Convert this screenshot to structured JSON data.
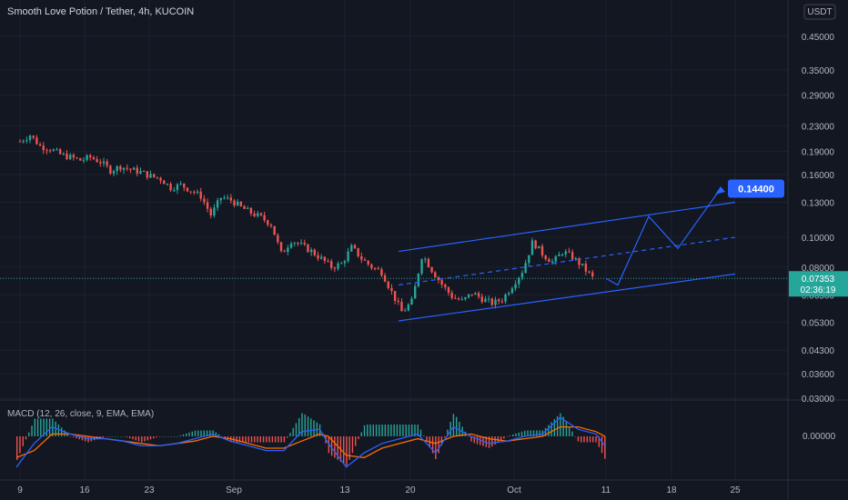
{
  "header": {
    "title": "Smooth Love Potion / Tether, 4h, KUCOIN",
    "currency_badge": "USDT"
  },
  "price_panel": {
    "last_price": "0.07353",
    "countdown": "02:36:19",
    "last_price_color": "#26a69a",
    "target_label": "0.14400",
    "target_color": "#2962ff",
    "channel_color": "#2962ff"
  },
  "macd_panel": {
    "label": "MACD (12, 26, close, 9, EMA, EMA)",
    "zero_tick": "0.00000",
    "macd_color": "#2962ff",
    "signal_color": "#ff6d00",
    "hist_up_color": "#26a69a",
    "hist_down_color": "#ef5350"
  },
  "chart_data": {
    "type": "candlestick",
    "symbol": "Smooth Love Potion / Tether",
    "interval": "4h",
    "exchange": "KUCOIN",
    "y_scale": "log",
    "y_ticks": [
      "0",
      "0.45000",
      "0.35000",
      "0.29000",
      "0.23000",
      "0.19000",
      "0.16000",
      "0.13000",
      "0.10000",
      "0.08000",
      "0.06500",
      "0.05300",
      "0.04300",
      "0.03600",
      "0.03000"
    ],
    "x_ticks": [
      "9",
      "16",
      "23",
      "Sep",
      "13",
      "20",
      "Oct",
      "11",
      "18",
      "25"
    ],
    "close_path": [
      [
        9,
        0.205
      ],
      [
        10,
        0.215
      ],
      [
        11,
        0.198
      ],
      [
        12,
        0.194
      ],
      [
        13,
        0.186
      ],
      [
        14,
        0.182
      ],
      [
        15,
        0.178
      ],
      [
        16,
        0.182
      ],
      [
        17,
        0.176
      ],
      [
        18,
        0.165
      ],
      [
        19,
        0.17
      ],
      [
        20,
        0.166
      ],
      [
        21,
        0.163
      ],
      [
        22,
        0.158
      ],
      [
        23,
        0.155
      ],
      [
        24,
        0.145
      ],
      [
        25,
        0.148
      ],
      [
        26,
        0.142
      ],
      [
        27,
        0.136
      ],
      [
        28,
        0.118
      ],
      [
        29,
        0.135
      ],
      [
        30,
        0.132
      ],
      [
        31,
        0.125
      ],
      [
        32,
        0.12
      ],
      [
        33,
        0.116
      ],
      [
        34,
        0.11
      ],
      [
        35,
        0.088
      ],
      [
        36,
        0.098
      ],
      [
        37,
        0.094
      ],
      [
        38,
        0.09
      ],
      [
        39,
        0.085
      ],
      [
        40,
        0.08
      ],
      [
        41,
        0.082
      ],
      [
        42,
        0.093
      ],
      [
        43,
        0.085
      ],
      [
        44,
        0.08
      ],
      [
        45,
        0.077
      ],
      [
        46,
        0.066
      ],
      [
        47,
        0.057
      ],
      [
        48,
        0.062
      ],
      [
        49,
        0.088
      ],
      [
        50,
        0.078
      ],
      [
        51,
        0.07
      ],
      [
        52,
        0.064
      ],
      [
        53,
        0.062
      ],
      [
        54,
        0.066
      ],
      [
        55,
        0.063
      ],
      [
        56,
        0.061
      ],
      [
        57,
        0.063
      ],
      [
        58,
        0.07
      ],
      [
        59,
        0.078
      ],
      [
        60,
        0.097
      ],
      [
        61,
        0.088
      ],
      [
        62,
        0.083
      ],
      [
        63,
        0.09
      ],
      [
        64,
        0.086
      ],
      [
        65,
        0.08
      ],
      [
        66,
        0.07353
      ]
    ],
    "projection": [
      [
        66,
        0.07353
      ],
      [
        67.5,
        0.07
      ],
      [
        73,
        0.117
      ],
      [
        78.5,
        0.092
      ],
      [
        86.5,
        0.144
      ]
    ],
    "channel": {
      "upper": [
        [
          46,
          0.09
        ],
        [
          92,
          0.13
        ]
      ],
      "middle": [
        [
          46,
          0.07
        ],
        [
          92,
          0.1
        ]
      ],
      "lower": [
        [
          46,
          0.0535
        ],
        [
          92,
          0.076
        ]
      ]
    },
    "last_price": 0.07353,
    "target": 0.144,
    "macd": {
      "name": "MACD (12, 26, close, 9, EMA, EMA)",
      "zero_label": "0.00000",
      "macd_line": [
        [
          0,
          -0.013
        ],
        [
          2,
          -0.003
        ],
        [
          4,
          0.004
        ],
        [
          6,
          0.001
        ],
        [
          8,
          -0.001
        ],
        [
          10,
          -0.001
        ],
        [
          12,
          -0.002
        ],
        [
          14,
          -0.004
        ],
        [
          16,
          -0.004
        ],
        [
          18,
          -0.003
        ],
        [
          20,
          -0.001
        ],
        [
          22,
          0.001
        ],
        [
          24,
          -0.002
        ],
        [
          26,
          -0.004
        ],
        [
          28,
          -0.006
        ],
        [
          30,
          -0.006
        ],
        [
          32,
          0.002
        ],
        [
          34,
          0.003
        ],
        [
          35,
          -0.003
        ],
        [
          37,
          -0.013
        ],
        [
          39,
          -0.007
        ],
        [
          41,
          -0.003
        ],
        [
          43,
          -0.001
        ],
        [
          45,
          0.001
        ],
        [
          47,
          -0.007
        ],
        [
          49,
          0.004
        ],
        [
          51,
          0.0
        ],
        [
          53,
          -0.003
        ],
        [
          55,
          -0.002
        ],
        [
          57,
          0.0
        ],
        [
          59,
          0.001
        ],
        [
          61,
          0.008
        ],
        [
          63,
          0.003
        ],
        [
          65,
          0.001
        ],
        [
          66,
          -0.004
        ]
      ],
      "signal_line": [
        [
          0,
          -0.009
        ],
        [
          2,
          -0.006
        ],
        [
          4,
          0.001
        ],
        [
          6,
          0.001
        ],
        [
          8,
          0.0
        ],
        [
          10,
          -0.001
        ],
        [
          12,
          -0.002
        ],
        [
          14,
          -0.003
        ],
        [
          16,
          -0.004
        ],
        [
          18,
          -0.003
        ],
        [
          20,
          -0.002
        ],
        [
          22,
          0.0
        ],
        [
          24,
          -0.001
        ],
        [
          26,
          -0.003
        ],
        [
          28,
          -0.005
        ],
        [
          30,
          -0.005
        ],
        [
          32,
          -0.002
        ],
        [
          34,
          0.001
        ],
        [
          35,
          0.0
        ],
        [
          37,
          -0.008
        ],
        [
          39,
          -0.009
        ],
        [
          41,
          -0.005
        ],
        [
          43,
          -0.003
        ],
        [
          45,
          -0.001
        ],
        [
          47,
          -0.003
        ],
        [
          49,
          0.0
        ],
        [
          51,
          0.001
        ],
        [
          53,
          -0.001
        ],
        [
          55,
          -0.002
        ],
        [
          57,
          -0.001
        ],
        [
          59,
          0.0
        ],
        [
          61,
          0.004
        ],
        [
          63,
          0.004
        ],
        [
          65,
          0.002
        ],
        [
          66,
          0.0
        ]
      ]
    }
  }
}
